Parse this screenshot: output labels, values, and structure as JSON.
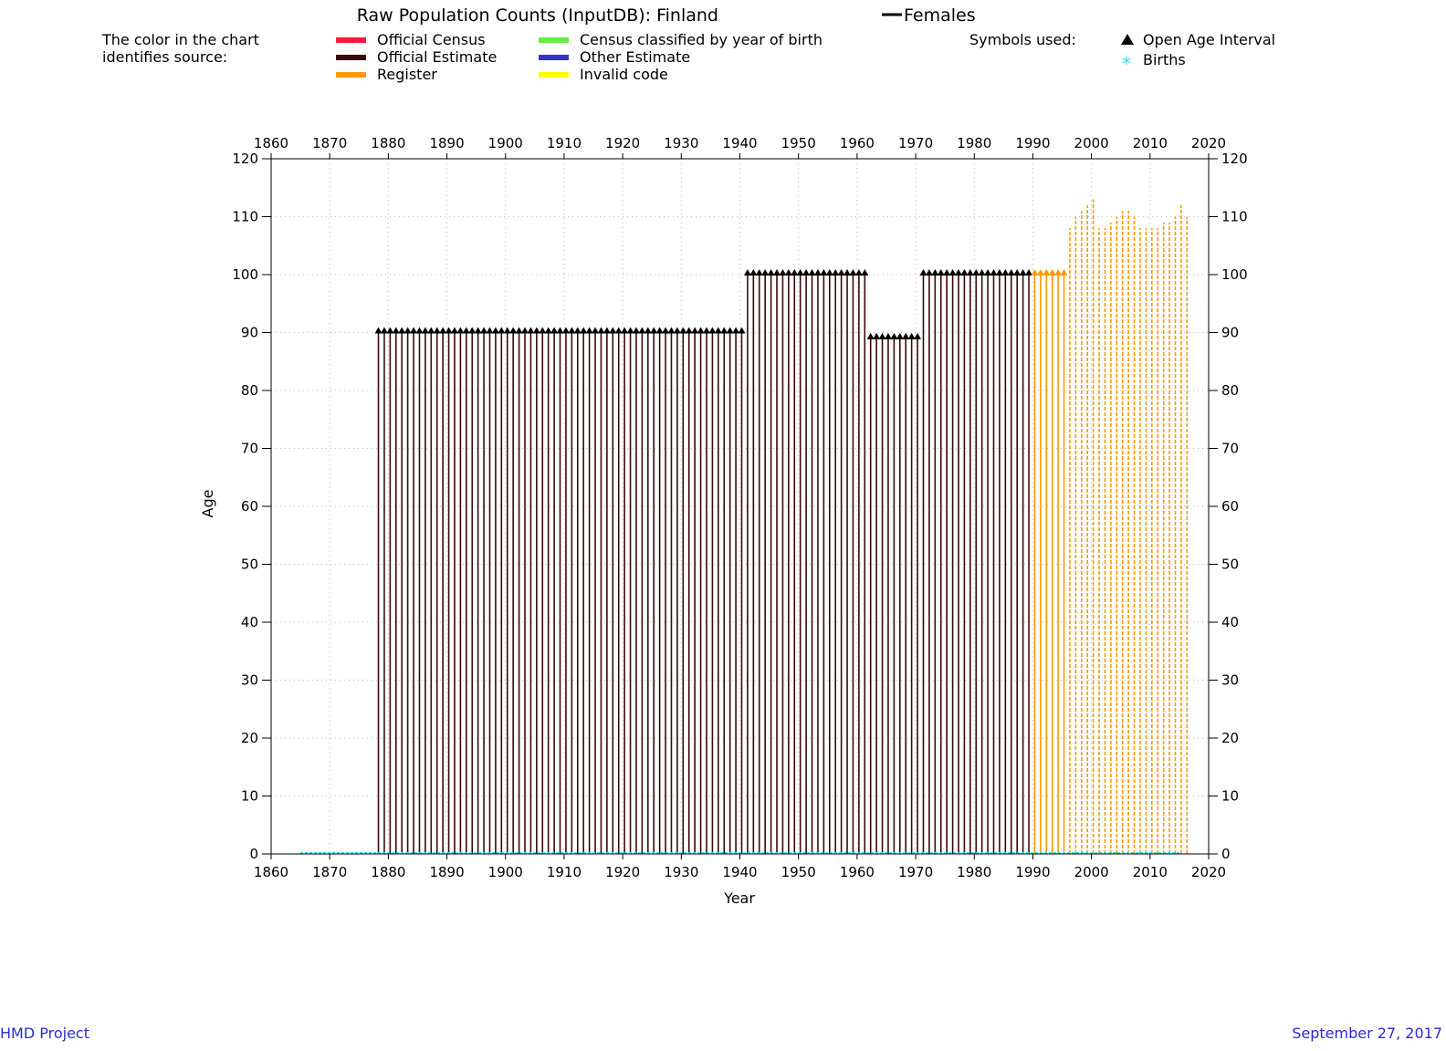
{
  "chart_data": {
    "type": "lexis-coverage",
    "title": "Raw Population Counts (InputDB): Finland",
    "title_series": "Females",
    "xlabel": "Year",
    "ylabel": "Age",
    "xlim": [
      1860,
      2020
    ],
    "ylim": [
      0,
      120
    ],
    "xticks": [
      1860,
      1870,
      1880,
      1890,
      1900,
      1910,
      1920,
      1930,
      1940,
      1950,
      1960,
      1970,
      1980,
      1990,
      2000,
      2010,
      2020
    ],
    "yticks": [
      0,
      10,
      20,
      30,
      40,
      50,
      60,
      70,
      80,
      90,
      100,
      110,
      120
    ],
    "legend_intro": [
      "The color in the chart",
      "identifies source:"
    ],
    "legend_sources": [
      {
        "label": "Official Census",
        "color": "#ff1a3c"
      },
      {
        "label": "Official Estimate",
        "color": "#3a0a0a"
      },
      {
        "label": "Register",
        "color": "#ff9900"
      },
      {
        "label": "Census classified by year of birth",
        "color": "#66ee44"
      },
      {
        "label": "Other Estimate",
        "color": "#3333cc"
      },
      {
        "label": "Invalid code",
        "color": "#ffff00"
      }
    ],
    "symbols_title": "Symbols used:",
    "symbols": [
      {
        "label": "Open Age Interval",
        "icon": "triangle-icon",
        "color": "#000000"
      },
      {
        "label": "Births",
        "icon": "asterisk-icon",
        "color": "#22e5ee"
      }
    ],
    "segments": [
      {
        "source": "Official Estimate",
        "years": [
          1878,
          1940
        ],
        "open_age": 90
      },
      {
        "source": "Official Estimate",
        "years": [
          1941,
          1961
        ],
        "open_age": 100
      },
      {
        "source": "Official Estimate",
        "years": [
          1962,
          1970
        ],
        "open_age": 89
      },
      {
        "source": "Official Estimate",
        "years": [
          1971,
          1989
        ],
        "open_age": 100
      },
      {
        "source": "Register",
        "years": [
          1990,
          1995
        ],
        "open_age": 100
      }
    ],
    "register_max_age": [
      {
        "year": 1996,
        "age": 108
      },
      {
        "year": 1997,
        "age": 110
      },
      {
        "year": 1998,
        "age": 111
      },
      {
        "year": 1999,
        "age": 112
      },
      {
        "year": 2000,
        "age": 113
      },
      {
        "year": 2001,
        "age": 108
      },
      {
        "year": 2002,
        "age": 108
      },
      {
        "year": 2003,
        "age": 109
      },
      {
        "year": 2004,
        "age": 110
      },
      {
        "year": 2005,
        "age": 111
      },
      {
        "year": 2006,
        "age": 111
      },
      {
        "year": 2007,
        "age": 110
      },
      {
        "year": 2008,
        "age": 108
      },
      {
        "year": 2009,
        "age": 108
      },
      {
        "year": 2010,
        "age": 108
      },
      {
        "year": 2011,
        "age": 108
      },
      {
        "year": 2012,
        "age": 109
      },
      {
        "year": 2013,
        "age": 109
      },
      {
        "year": 2014,
        "age": 110
      },
      {
        "year": 2015,
        "age": 112
      },
      {
        "year": 2016,
        "age": 110
      }
    ],
    "births_years": [
      1865,
      2015
    ]
  },
  "footer": {
    "left": "HMD Project",
    "right": "September 27, 2017"
  }
}
